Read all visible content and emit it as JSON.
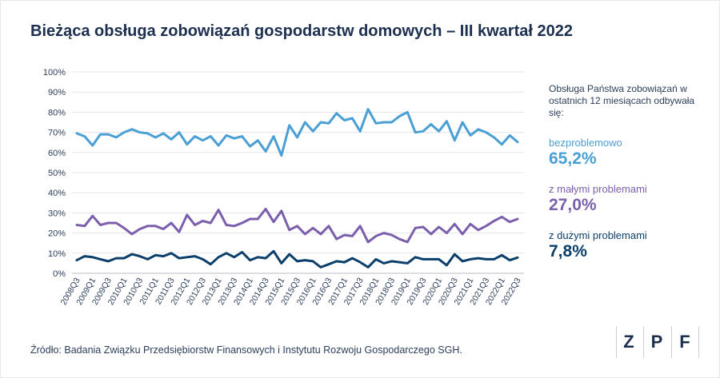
{
  "title": "Bieżąca obsługa zobowiązań gospodarstw domowych – III kwartał 2022",
  "legend": {
    "intro": "Obsługa Państwa zobowiązań w ostatnich 12 miesiącach odbywała się:",
    "items": [
      {
        "label": "bezproblemowo",
        "value": "65,2%",
        "color": "#4a9fd4"
      },
      {
        "label": "z małymi problemami",
        "value": "27,0%",
        "color": "#7b5fac"
      },
      {
        "label": "z dużymi problemami",
        "value": "7,8%",
        "color": "#0b3f6b"
      }
    ]
  },
  "source": "Źródło: Badania Związku Przedsiębiorstw Finansowych i Instytutu Rozwoju Gospodarczego SGH.",
  "logo": {
    "letters": [
      "Z",
      "P",
      "F"
    ]
  },
  "chart_data": {
    "type": "line",
    "x_tick_labels": [
      "2008Q3",
      "2009Q1",
      "2009Q3",
      "2010Q1",
      "2010Q3",
      "2011Q1",
      "2011Q3",
      "2012Q1",
      "2012Q3",
      "2013Q1",
      "2013Q3",
      "2014Q1",
      "2014Q3",
      "2015Q1",
      "2015Q3",
      "2016Q1",
      "2016Q3",
      "2017Q1",
      "2017Q3",
      "2018Q1",
      "2018Q3",
      "2019Q1",
      "2019Q3",
      "2020Q1",
      "2020Q3",
      "2021Q1",
      "2021Q3",
      "2022Q1",
      "2022Q3"
    ],
    "y_tick_labels": [
      "0%",
      "10%",
      "20%",
      "30%",
      "40%",
      "50%",
      "60%",
      "70%",
      "80%",
      "90%",
      "100%"
    ],
    "ylim": [
      0,
      100
    ],
    "grid": true,
    "series": [
      {
        "name": "bezproblemowo",
        "color": "#4a9fd4",
        "values": [
          69.5,
          68,
          63.5,
          69,
          69,
          67.5,
          70,
          71.5,
          70,
          69.5,
          67.5,
          69.5,
          66.5,
          70,
          64,
          68,
          66,
          68,
          63.5,
          68.5,
          67,
          68,
          63,
          66,
          60.5,
          68,
          58.5,
          73.5,
          67.5,
          75,
          70.5,
          75,
          74.5,
          79.5,
          76,
          77,
          70.5,
          81.5,
          74.5,
          75,
          75,
          78,
          80,
          70,
          70.5,
          74,
          70.5,
          75.5,
          66,
          75,
          68.5,
          71.5,
          70,
          67.5,
          64,
          68.5,
          65.2
        ]
      },
      {
        "name": "z małymi problemami",
        "color": "#7b5fac",
        "values": [
          24,
          23.5,
          28.5,
          24,
          25,
          25,
          22.5,
          19.5,
          22,
          23.5,
          23.5,
          22,
          25,
          20.5,
          29,
          24,
          26,
          25,
          31.5,
          24,
          23.5,
          25,
          27,
          27,
          32,
          25.5,
          31,
          21.5,
          23.5,
          19.5,
          22.5,
          19.5,
          23.5,
          17,
          19,
          18.5,
          23.5,
          15.5,
          18.5,
          20,
          19,
          17,
          15.5,
          22.5,
          23,
          19.5,
          23,
          20,
          24.5,
          19.5,
          24.5,
          21.5,
          23.5,
          26,
          28,
          25.5,
          27
        ]
      },
      {
        "name": "z dużymi problemami",
        "color": "#0b3f6b",
        "values": [
          6.5,
          8.5,
          8,
          7,
          6,
          7.5,
          7.5,
          9.5,
          8.5,
          7,
          9,
          8.5,
          10,
          7.5,
          8,
          8.5,
          7,
          4.5,
          8,
          10,
          8,
          10.5,
          6.5,
          8,
          7.5,
          11,
          5,
          9.5,
          6,
          6.5,
          6,
          3,
          4.5,
          6,
          5.5,
          7.5,
          5.5,
          3,
          7,
          5,
          6,
          5.5,
          5,
          8,
          7,
          7,
          7,
          4,
          9.5,
          6,
          7,
          7.5,
          7,
          7,
          9,
          6.5,
          7.8
        ]
      }
    ]
  }
}
